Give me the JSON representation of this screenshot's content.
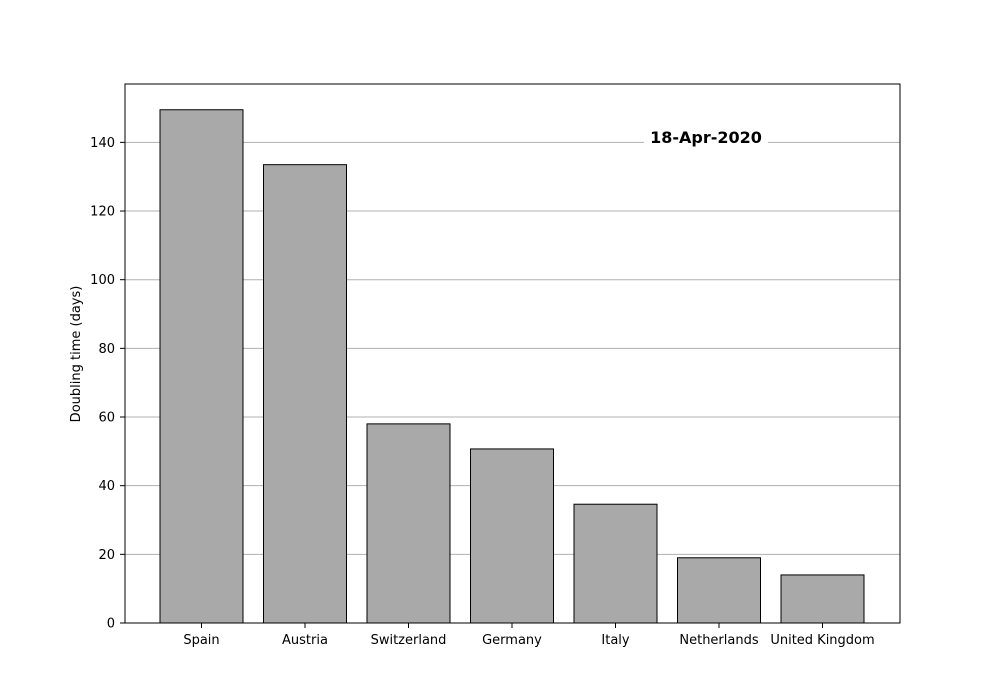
{
  "chart_data": {
    "type": "bar",
    "categories": [
      "Spain",
      "Austria",
      "Switzerland",
      "Germany",
      "Italy",
      "Netherlands",
      "United Kingdom"
    ],
    "values": [
      149.5,
      133.5,
      58.0,
      50.7,
      34.6,
      19.0,
      14.0
    ],
    "title": "",
    "xlabel": "",
    "ylabel": "Doubling time (days)",
    "ylim": [
      0,
      157
    ],
    "yticks": [
      0,
      20,
      40,
      60,
      80,
      100,
      120,
      140
    ],
    "annotation": "18-Apr-2020",
    "grid": "y",
    "colors": {
      "bar_fill": "#a9a9a9",
      "bar_edge": "#000000",
      "grid": "#b0b0b0",
      "axis": "#000000"
    }
  }
}
